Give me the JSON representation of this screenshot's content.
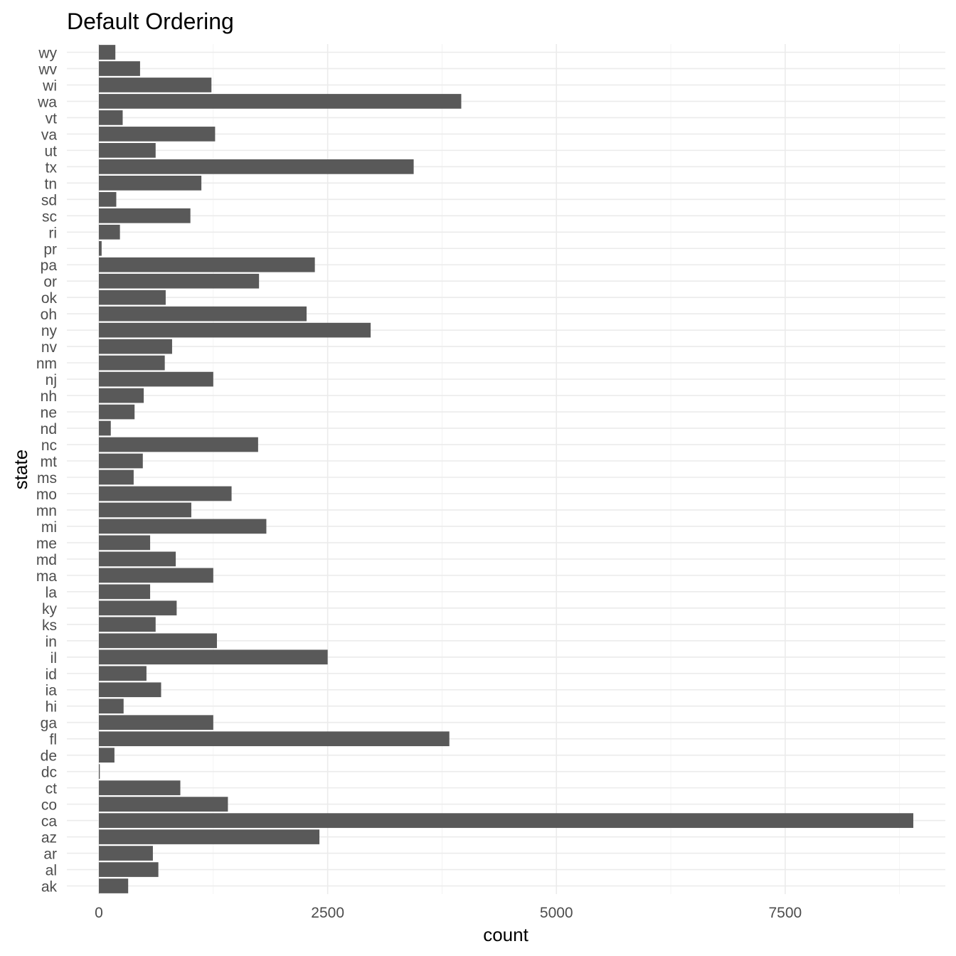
{
  "chart_data": {
    "type": "bar",
    "orientation": "horizontal",
    "title": "Default Ordering",
    "xlabel": "count",
    "ylabel": "state",
    "xlim": [
      -350,
      9250
    ],
    "x_ticks": [
      0,
      2500,
      5000,
      7500
    ],
    "x_tick_labels": [
      "0",
      "2500",
      "5000",
      "7500"
    ],
    "grid": true,
    "legend": "none",
    "bar_color": "#595959",
    "categories": [
      "ak",
      "al",
      "ar",
      "az",
      "ca",
      "co",
      "ct",
      "dc",
      "de",
      "fl",
      "ga",
      "hi",
      "ia",
      "id",
      "il",
      "in",
      "ks",
      "ky",
      "la",
      "ma",
      "md",
      "me",
      "mi",
      "mn",
      "mo",
      "ms",
      "mt",
      "nc",
      "nd",
      "ne",
      "nh",
      "nj",
      "nm",
      "nv",
      "ny",
      "oh",
      "ok",
      "or",
      "pa",
      "pr",
      "ri",
      "sc",
      "sd",
      "tn",
      "tx",
      "ut",
      "va",
      "vt",
      "wa",
      "wi",
      "wv",
      "wy"
    ],
    "values": [
      320,
      650,
      590,
      2410,
      8900,
      1410,
      890,
      10,
      170,
      3830,
      1250,
      270,
      680,
      520,
      2500,
      1290,
      620,
      850,
      560,
      1250,
      840,
      560,
      1830,
      1010,
      1450,
      380,
      480,
      1740,
      130,
      390,
      490,
      1250,
      720,
      800,
      2970,
      2270,
      730,
      1750,
      2360,
      30,
      230,
      1000,
      190,
      1120,
      3440,
      620,
      1270,
      260,
      3960,
      1230,
      450,
      180
    ]
  }
}
